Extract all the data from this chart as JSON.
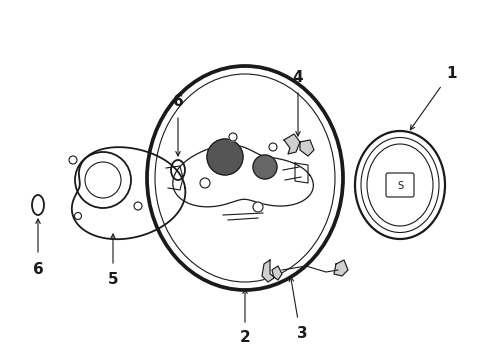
{
  "bg_color": "#ffffff",
  "line_color": "#1a1a1a",
  "fig_width": 4.9,
  "fig_height": 3.6,
  "dpi": 100,
  "label_fontsize": 11,
  "label_fontweight": "bold",
  "lw_thick": 2.2,
  "lw_mid": 1.3,
  "lw_thin": 0.8
}
